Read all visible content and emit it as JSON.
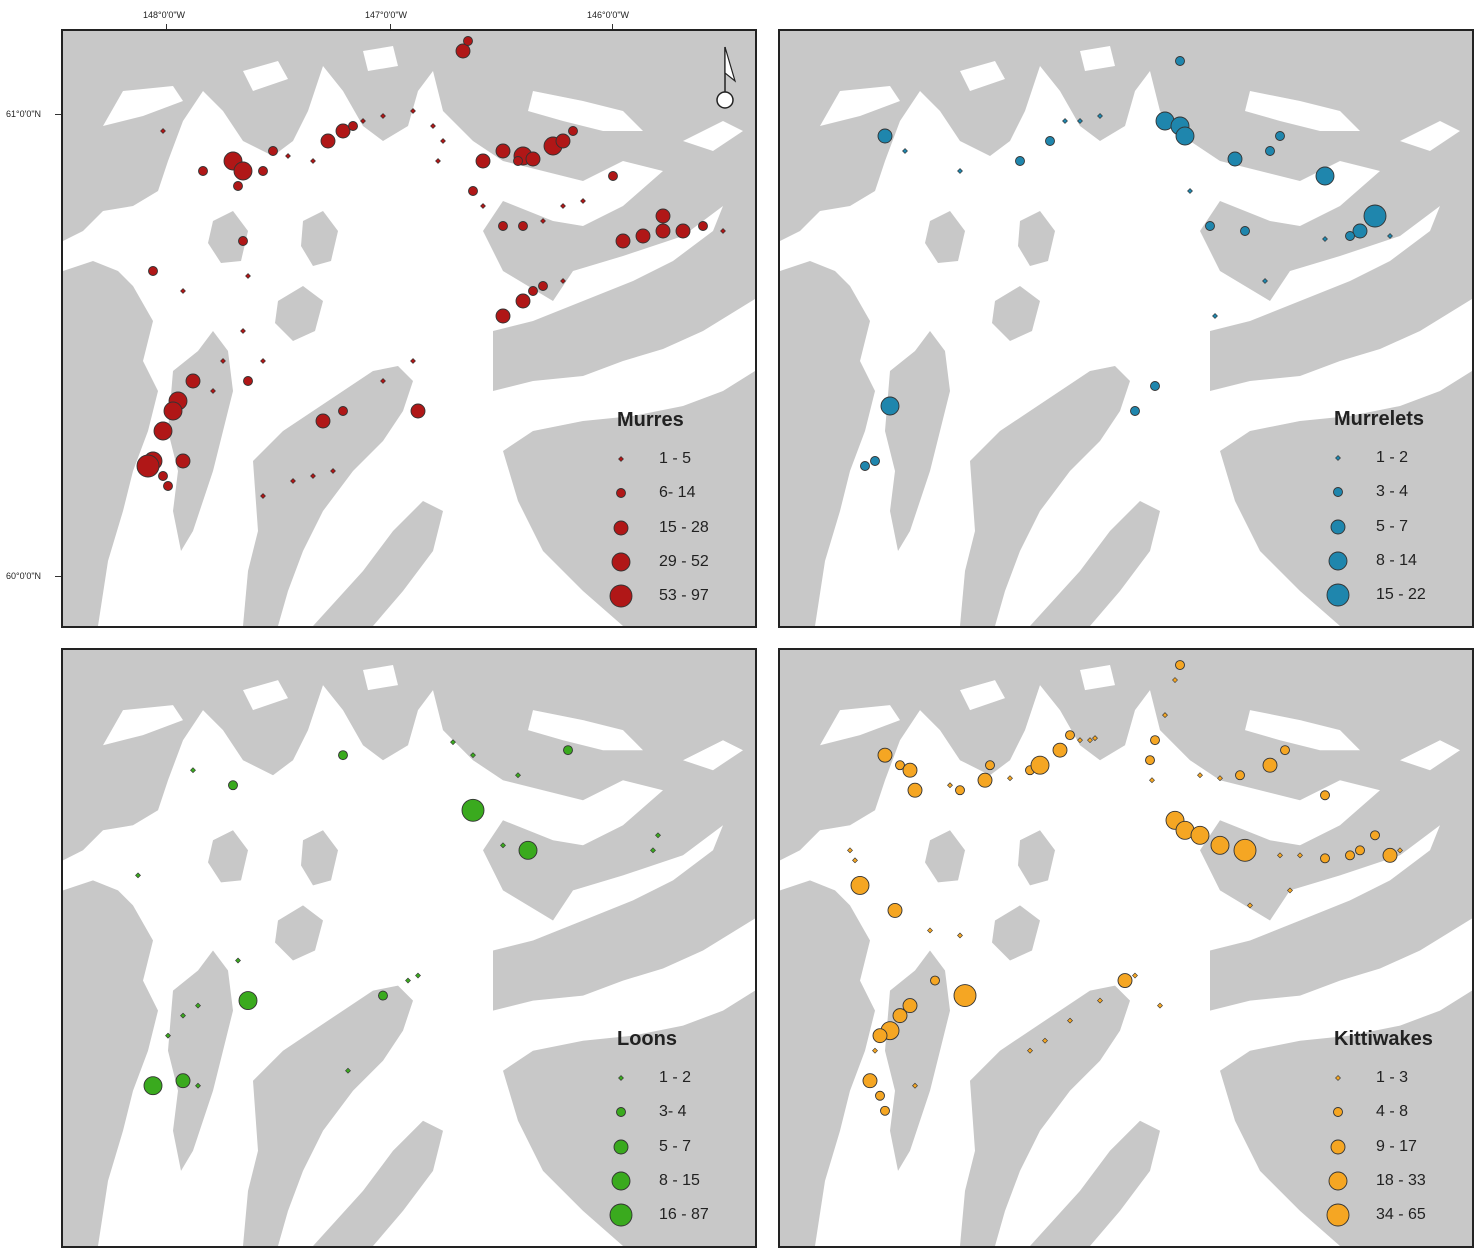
{
  "axes": {
    "lon_labels": [
      "148°0'0\"W",
      "147°0'0\"W",
      "146°0'0\"W"
    ],
    "lat_labels": [
      "61°0'0\"N",
      "60°0'0\"N"
    ]
  },
  "map_colors": {
    "land": "#c8c8c8",
    "water": "#ffffff"
  },
  "north_arrow": "north-arrow-icon",
  "panels": [
    {
      "id": "murres",
      "title": "Murres",
      "color": "#b01717",
      "legend": [
        "1 - 5",
        "6- 14",
        "15 - 28",
        "29 - 52",
        "53 - 97"
      ]
    },
    {
      "id": "murrelets",
      "title": "Murrelets",
      "color": "#1f86ad",
      "legend": [
        "1 - 2",
        "3 - 4",
        "5 - 7",
        "8 - 14",
        "15 - 22"
      ]
    },
    {
      "id": "loons",
      "title": "Loons",
      "color": "#3aaa1e",
      "legend": [
        "1 - 2",
        "3- 4",
        "5 - 7",
        "8 - 15",
        "16 - 87"
      ]
    },
    {
      "id": "kittiwakes",
      "title": "Kittiwakes",
      "color": "#f5a623",
      "legend": [
        "1 - 3",
        "4 - 8",
        "9 - 17",
        "18 - 33",
        "34 - 65"
      ]
    }
  ]
}
